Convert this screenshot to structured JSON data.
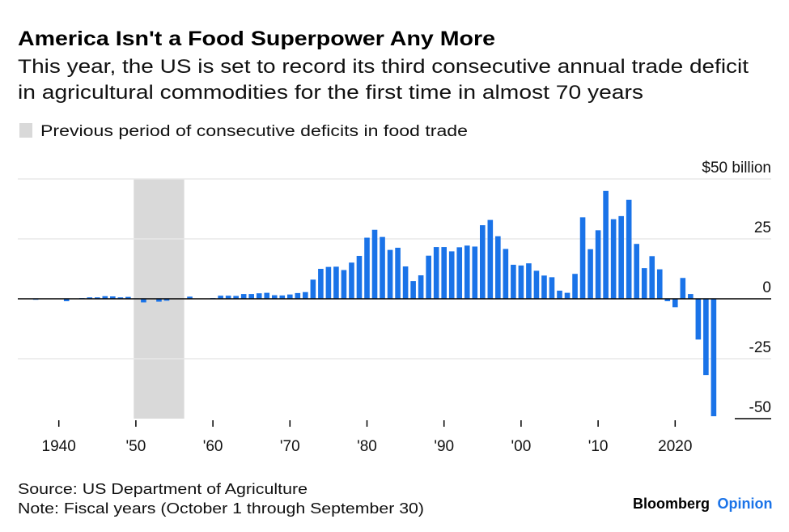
{
  "header": {
    "title": "America Isn't a Food Superpower Any More",
    "subtitle_line1": "This year, the US is set to record its third consecutive annual trade deficit",
    "subtitle_line2": "in agricultural commodities for the first time in almost 70 years",
    "legend_label": "Previous period of consecutive deficits in food trade"
  },
  "footer": {
    "source": "Source: US Department of Agriculture",
    "note": "Note: Fiscal years (October 1 through September 30)",
    "brand": "Bloomberg",
    "brand_suffix": "Opinion"
  },
  "colors": {
    "bar": "#1a73e8",
    "shade": "#d9d9d9",
    "brand_accent": "#1a73e8"
  },
  "chart_data": {
    "type": "bar",
    "title": "America Isn't a Food Superpower Any More",
    "ylabel": "$ billion",
    "ylim": [
      -50,
      50
    ],
    "y_ticks": [
      50,
      25,
      0,
      -25,
      -50
    ],
    "y_tick_labels": [
      "$50 billion",
      "25",
      "0",
      "-25",
      "-50"
    ],
    "x_ticks": [
      1940,
      1950,
      1960,
      1970,
      1980,
      1990,
      2000,
      2010,
      2020
    ],
    "x_tick_labels": [
      "1940",
      "'50",
      "'60",
      "'70",
      "'80",
      "'90",
      "'00",
      "'10",
      "2020"
    ],
    "highlight_period": [
      1950,
      1956
    ],
    "legend": "Previous period of consecutive deficits in food trade",
    "grid": true,
    "x_start": 1935,
    "values": [
      0,
      0,
      -0.4,
      0,
      0,
      0.1,
      -1.0,
      0,
      0.3,
      0.6,
      0.6,
      1.1,
      1.0,
      0.6,
      0.8,
      0.2,
      -1.5,
      0,
      -1.2,
      -0.8,
      0,
      0,
      0.9,
      0,
      0,
      0.3,
      1.3,
      1.3,
      1.2,
      2.0,
      2.0,
      2.3,
      2.5,
      1.5,
      1.4,
      1.8,
      2.4,
      2.8,
      8.0,
      12.5,
      13.3,
      13.4,
      12.0,
      15.1,
      17.9,
      25.5,
      28.8,
      25.8,
      20.4,
      21.3,
      13.5,
      7.4,
      9.8,
      18.0,
      21.6,
      21.6,
      19.8,
      21.5,
      22.2,
      21.8,
      30.7,
      32.9,
      26.1,
      20.8,
      14.2,
      13.9,
      14.8,
      11.7,
      9.7,
      9.0,
      3.4,
      2.5,
      10.4,
      34.0,
      20.7,
      28.6,
      45.0,
      33.2,
      34.5,
      41.3,
      22.9,
      12.8,
      17.8,
      12.3,
      -1.0,
      -3.5,
      8.7,
      2.0,
      -17.0,
      -31.8,
      -49.0
    ]
  }
}
